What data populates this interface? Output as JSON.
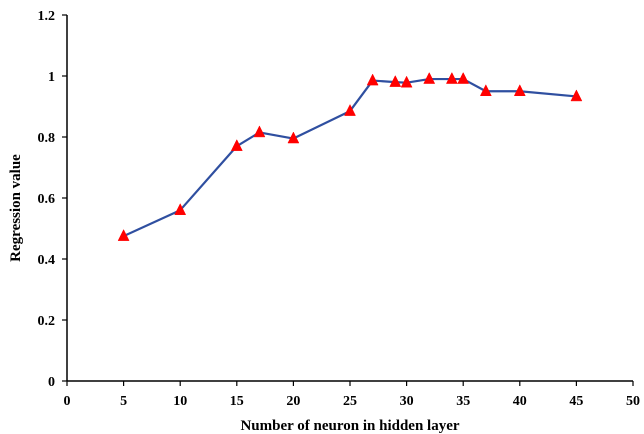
{
  "chart_data": {
    "type": "line",
    "title": "",
    "xlabel": "Number of neuron in hidden layer",
    "ylabel": "Regression value",
    "xlim": [
      0,
      50
    ],
    "ylim": [
      0,
      1.2
    ],
    "x_ticks": [
      "0",
      "5",
      "10",
      "15",
      "20",
      "25",
      "30",
      "35",
      "40",
      "45",
      "50"
    ],
    "y_ticks": [
      "0",
      "0.2",
      "0.4",
      "0.6",
      "0.8",
      "1",
      "1.2"
    ],
    "grid": false,
    "legend": "none",
    "series": [
      {
        "x": [
          5,
          10,
          15,
          17,
          20,
          25,
          27,
          29,
          30,
          32,
          34,
          35,
          37,
          40,
          45
        ],
        "y": [
          0.475,
          0.56,
          0.77,
          0.815,
          0.795,
          0.885,
          0.985,
          0.98,
          0.978,
          0.99,
          0.99,
          0.99,
          0.95,
          0.95,
          0.933
        ],
        "line_color": "#2F4FA0",
        "marker": "triangle",
        "marker_color": "#FF0000"
      }
    ]
  }
}
